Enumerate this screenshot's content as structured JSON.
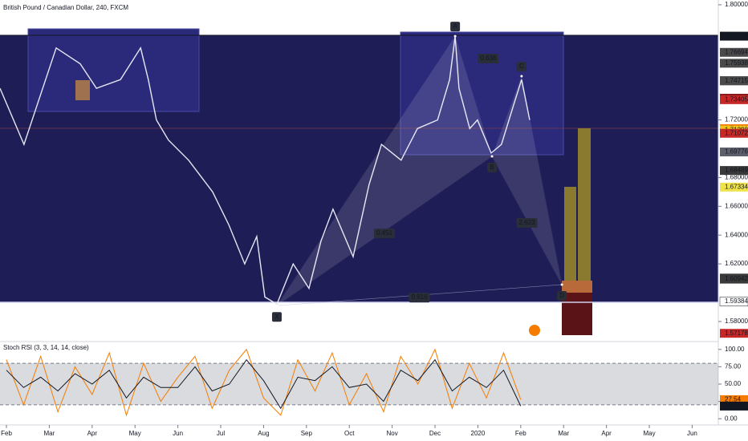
{
  "chart_data": [
    {
      "type": "line",
      "title": "British Pound / Canadian Dollar, 240, FXCM",
      "x": [
        -0.15,
        0.41,
        1.16,
        1.72,
        2.1,
        2.66,
        3.13,
        3.31,
        3.5,
        3.78,
        4.25,
        4.81,
        5.19,
        5.56,
        5.84,
        6.03,
        6.31,
        6.69,
        7.06,
        7.34,
        7.62,
        8.09,
        8.46,
        8.75,
        9.21,
        9.59,
        10.06,
        10.34,
        10.47,
        10.56,
        10.81,
        10.99,
        11.31,
        11.55,
        11.84,
        12.02,
        12.21
      ],
      "values": [
        1.742,
        1.703,
        1.77,
        1.759,
        1.742,
        1.748,
        1.77,
        1.748,
        1.72,
        1.706,
        1.692,
        1.67,
        1.647,
        1.62,
        1.639,
        1.597,
        1.592,
        1.62,
        1.603,
        1.636,
        1.658,
        1.625,
        1.675,
        1.703,
        1.692,
        1.714,
        1.72,
        1.748,
        1.778,
        1.742,
        1.714,
        1.72,
        1.697,
        1.703,
        1.731,
        1.748,
        1.72
      ],
      "color": "#e6e6f5",
      "xlim": [
        -0.15,
        16.61
      ],
      "ylim": [
        1.5666,
        1.8033
      ],
      "xticks": [
        {
          "value": 0,
          "label": "Feb"
        },
        {
          "value": 1,
          "label": "Mar"
        },
        {
          "value": 2,
          "label": "Apr"
        },
        {
          "value": 3,
          "label": "May"
        },
        {
          "value": 4,
          "label": "Jun"
        },
        {
          "value": 5,
          "label": "Jul"
        },
        {
          "value": 6,
          "label": "Aug"
        },
        {
          "value": 7,
          "label": "Sep"
        },
        {
          "value": 8,
          "label": "Oct"
        },
        {
          "value": 9,
          "label": "Nov"
        },
        {
          "value": 10,
          "label": "Dec"
        },
        {
          "value": 11,
          "label": "2020"
        },
        {
          "value": 12,
          "label": "Feb"
        },
        {
          "value": 13,
          "label": "Mar"
        },
        {
          "value": 14,
          "label": "Apr"
        },
        {
          "value": 15,
          "label": "May"
        },
        {
          "value": 16,
          "label": "Jun"
        }
      ],
      "yticks": [
        {
          "value": 1.8,
          "label": "1.80000"
        },
        {
          "value": 1.72,
          "label": "1.72000"
        },
        {
          "value": 1.68,
          "label": "1.68000"
        },
        {
          "value": 1.66,
          "label": "1.66000"
        },
        {
          "value": 1.64,
          "label": "1.64000"
        },
        {
          "value": 1.62,
          "label": "1.62000"
        },
        {
          "value": 1.58,
          "label": "1.58000"
        }
      ],
      "price_labels": [
        {
          "value": 1.77819,
          "label": "1.77819",
          "color": "#131722"
        },
        {
          "value": 1.76694,
          "label": "1.76694",
          "color": "#4a4a4a"
        },
        {
          "value": 1.75938,
          "label": "1.75938",
          "color": "#4a4a4a"
        },
        {
          "value": 1.74728,
          "label": "1.74728",
          "color": "#4a4a4a"
        },
        {
          "value": 1.74715,
          "label": "1.74715",
          "color": "#4a4a4a"
        },
        {
          "value": 1.73507,
          "label": "1.73507",
          "color": "#8b1a1a"
        },
        {
          "value": 1.73405,
          "label": "1.73405",
          "color": "#c62828"
        },
        {
          "value": 1.71393,
          "label": "1.71393",
          "color": "#f57c00"
        },
        {
          "value": 1.71298,
          "label": "1.71298",
          "color": "#f0c419"
        },
        {
          "value": 1.71072,
          "label": "1.71072",
          "color": "#c62828"
        },
        {
          "value": 1.69776,
          "label": "1.69776",
          "color": "#5d606b"
        },
        {
          "value": 1.68489,
          "label": "1.68489",
          "color": "#3a3a3a"
        },
        {
          "value": 1.67334,
          "label": "1.67334",
          "color": "#f0e34a"
        },
        {
          "value": 1.61013,
          "label": "1.61013",
          "color": "#3a3a3a"
        },
        {
          "value": 1.60942,
          "label": "1.60942",
          "color": "#3a3a3a"
        },
        {
          "value": 1.59384,
          "label": "1.59384",
          "color": "#ffffff"
        },
        {
          "value": 1.57178,
          "label": "1.57178",
          "color": "#c62828"
        }
      ],
      "pattern": {
        "points": [
          {
            "label": "X",
            "x": 6.31,
            "y": 1.591
          },
          {
            "label": "A",
            "x": 10.47,
            "y": 1.7782
          },
          {
            "label": "B",
            "x": 11.33,
            "y": 1.6947
          },
          {
            "label": "C",
            "x": 12.02,
            "y": 1.7504
          },
          {
            "label": "D",
            "x": 12.96,
            "y": 1.6056
          }
        ],
        "ratios": [
          0.451,
          0.636,
          2.623,
          0.916
        ]
      }
    },
    {
      "type": "line",
      "title": "Stoch RSI (3, 3, 14, 14, close)",
      "x": [
        0,
        0.4,
        0.8,
        1.2,
        1.6,
        2.0,
        2.4,
        2.8,
        3.2,
        3.6,
        4.0,
        4.4,
        4.8,
        5.2,
        5.6,
        6.0,
        6.4,
        6.8,
        7.2,
        7.6,
        8.0,
        8.4,
        8.8,
        9.2,
        9.6,
        10.0,
        10.4,
        10.8,
        11.2,
        11.6,
        12.0
      ],
      "series": [
        {
          "color": "#f57c00",
          "values": [
            85,
            20,
            90,
            10,
            75,
            35,
            95,
            5,
            80,
            25,
            60,
            90,
            15,
            70,
            100,
            30,
            5,
            85,
            40,
            95,
            20,
            65,
            10,
            90,
            50,
            100,
            15,
            80,
            30,
            95,
            27.54
          ]
        },
        {
          "color": "#131722",
          "values": [
            70,
            45,
            60,
            40,
            65,
            50,
            70,
            30,
            60,
            45,
            45,
            75,
            40,
            50,
            85,
            55,
            15,
            60,
            55,
            75,
            45,
            50,
            25,
            70,
            55,
            85,
            40,
            60,
            45,
            70,
            18.26
          ]
        }
      ],
      "xlim": [
        -0.15,
        16.61
      ],
      "ylim": [
        -9,
        109
      ],
      "yticks": [
        {
          "value": 100,
          "label": "100.00"
        },
        {
          "value": 75,
          "label": "75.00"
        },
        {
          "value": 50,
          "label": "50.00"
        },
        {
          "value": 25,
          "label": "25.00"
        },
        {
          "value": 0,
          "label": "0.00"
        }
      ],
      "bands": [
        80,
        20
      ],
      "last_labels": [
        {
          "value": 27.54,
          "label": "27.54",
          "color": "#f57c00"
        },
        {
          "value": 18.26,
          "label": "18.26",
          "color": "#131722"
        }
      ]
    }
  ]
}
